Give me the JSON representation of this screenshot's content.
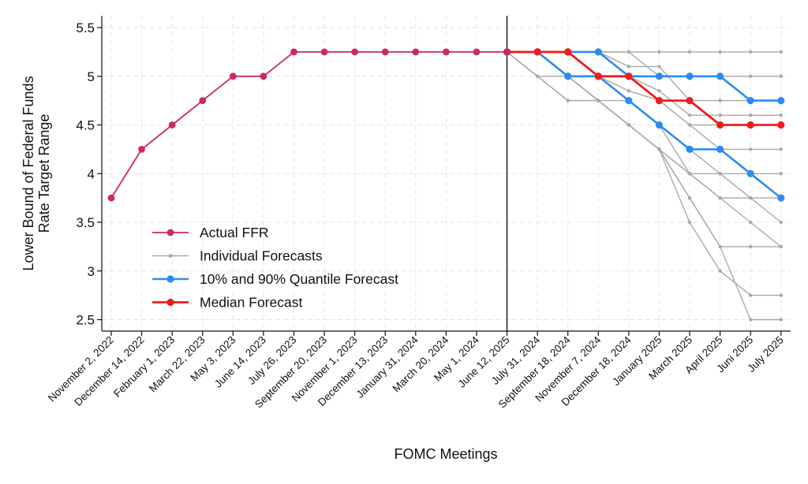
{
  "chart_data": {
    "type": "line",
    "xlabel": "FOMC Meetings",
    "ylabel": [
      "Lower Bound of Federal Funds",
      "Rate Target Range"
    ],
    "ylim": [
      2.4,
      5.6
    ],
    "yticks": [
      2.5,
      3,
      3.5,
      4,
      4.5,
      5,
      5.5
    ],
    "ytick_labels": [
      "2.5",
      "3",
      "3.5",
      "4",
      "4.5",
      "5",
      "5.5"
    ],
    "grid": true,
    "legend_position": "lower-left",
    "categories": [
      "November 2, 2022",
      "December 14, 2022",
      "February 1, 2023",
      "March 22, 2023",
      "May 3, 2023",
      "June 14, 2023",
      "July 26, 2023",
      "September 20, 2023",
      "November 1, 2023",
      "December 13, 2023",
      "January 31, 2024",
      "March 20, 2024",
      "May 1, 2024",
      "June 12, 2025",
      "July 31, 2024",
      "September 18, 2024",
      "November 7, 2024",
      "December 18, 2024",
      "January 2025",
      "March 2025",
      "April 2025",
      "Juni 2025",
      "July 2025"
    ],
    "vline_category": "June 12, 2025",
    "series": [
      {
        "name": "Actual FFR",
        "color": "#cc2766",
        "values": [
          3.75,
          4.25,
          4.5,
          4.75,
          5.0,
          5.0,
          5.25,
          5.25,
          5.25,
          5.25,
          5.25,
          5.25,
          5.25,
          5.25,
          null,
          null,
          null,
          null,
          null,
          null,
          null,
          null,
          null
        ]
      },
      {
        "name": "Individual Forecasts",
        "color": "#a9a9a9",
        "individual": [
          [
            null,
            null,
            null,
            null,
            null,
            null,
            null,
            null,
            null,
            null,
            null,
            null,
            null,
            5.25,
            5.25,
            5.25,
            5.25,
            5.25,
            5.25,
            5.25,
            5.25,
            5.25,
            5.25
          ],
          [
            null,
            null,
            null,
            null,
            null,
            null,
            null,
            null,
            null,
            null,
            null,
            null,
            null,
            5.25,
            5.25,
            5.25,
            5.25,
            5.25,
            5.0,
            5.0,
            5.0,
            5.0,
            5.0
          ],
          [
            null,
            null,
            null,
            null,
            null,
            null,
            null,
            null,
            null,
            null,
            null,
            null,
            null,
            5.25,
            5.25,
            5.25,
            5.25,
            5.1,
            5.1,
            4.75,
            4.75,
            4.75,
            4.75
          ],
          [
            null,
            null,
            null,
            null,
            null,
            null,
            null,
            null,
            null,
            null,
            null,
            null,
            null,
            5.25,
            5.25,
            5.25,
            5.25,
            5.0,
            4.85,
            4.6,
            4.6,
            4.6,
            4.6
          ],
          [
            null,
            null,
            null,
            null,
            null,
            null,
            null,
            null,
            null,
            null,
            null,
            null,
            null,
            5.25,
            5.25,
            5.25,
            5.0,
            5.0,
            4.75,
            4.5,
            4.5,
            4.5,
            4.5
          ],
          [
            null,
            null,
            null,
            null,
            null,
            null,
            null,
            null,
            null,
            null,
            null,
            null,
            null,
            5.25,
            5.25,
            5.25,
            5.0,
            4.85,
            4.75,
            4.5,
            4.25,
            4.25,
            4.25
          ],
          [
            null,
            null,
            null,
            null,
            null,
            null,
            null,
            null,
            null,
            null,
            null,
            null,
            null,
            5.25,
            5.0,
            4.75,
            4.75,
            4.75,
            4.5,
            4.25,
            4.0,
            4.0,
            4.0
          ],
          [
            null,
            null,
            null,
            null,
            null,
            null,
            null,
            null,
            null,
            null,
            null,
            null,
            null,
            5.25,
            5.0,
            5.0,
            4.75,
            4.5,
            4.25,
            4.0,
            3.75,
            3.75,
            3.75
          ],
          [
            null,
            null,
            null,
            null,
            null,
            null,
            null,
            null,
            null,
            null,
            null,
            null,
            null,
            5.25,
            5.25,
            5.0,
            4.75,
            4.5,
            4.25,
            4.0,
            4.0,
            3.75,
            3.5
          ],
          [
            null,
            null,
            null,
            null,
            null,
            null,
            null,
            null,
            null,
            null,
            null,
            null,
            null,
            5.25,
            5.25,
            5.0,
            5.0,
            4.75,
            4.5,
            4.0,
            3.75,
            3.5,
            3.25
          ],
          [
            null,
            null,
            null,
            null,
            null,
            null,
            null,
            null,
            null,
            null,
            null,
            null,
            null,
            5.25,
            5.0,
            4.75,
            4.75,
            4.5,
            4.25,
            3.75,
            3.25,
            3.25,
            3.25
          ],
          [
            null,
            null,
            null,
            null,
            null,
            null,
            null,
            null,
            null,
            null,
            null,
            null,
            null,
            5.25,
            5.25,
            5.0,
            4.75,
            4.5,
            4.25,
            3.5,
            3.0,
            2.75,
            2.75
          ],
          [
            null,
            null,
            null,
            null,
            null,
            null,
            null,
            null,
            null,
            null,
            null,
            null,
            null,
            5.25,
            5.25,
            5.0,
            4.75,
            4.5,
            4.25,
            3.75,
            3.25,
            2.5,
            2.5
          ]
        ]
      },
      {
        "name": "10% and 90% Quantile Forecast",
        "color": "#2b8cf0",
        "upper": [
          null,
          null,
          null,
          null,
          null,
          null,
          null,
          null,
          null,
          null,
          null,
          null,
          null,
          5.25,
          5.25,
          5.25,
          5.25,
          5.0,
          5.0,
          5.0,
          5.0,
          4.75,
          4.75
        ],
        "lower": [
          null,
          null,
          null,
          null,
          null,
          null,
          null,
          null,
          null,
          null,
          null,
          null,
          null,
          5.25,
          5.25,
          5.0,
          5.0,
          4.75,
          4.5,
          4.25,
          4.25,
          4.0,
          3.75
        ]
      },
      {
        "name": "Median Forecast",
        "color": "#ee1c1c",
        "values": [
          null,
          null,
          null,
          null,
          null,
          null,
          null,
          null,
          null,
          null,
          null,
          null,
          null,
          5.25,
          5.25,
          5.25,
          5.0,
          5.0,
          4.75,
          4.75,
          4.5,
          4.5,
          4.5
        ]
      }
    ]
  }
}
